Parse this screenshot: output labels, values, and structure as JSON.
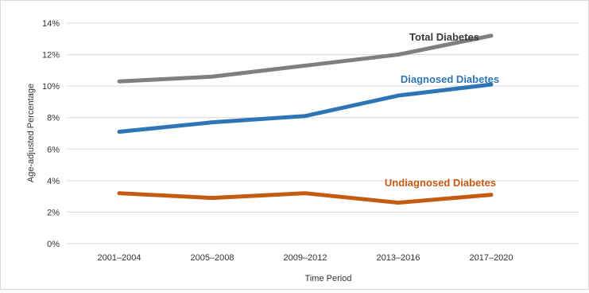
{
  "chart_data": {
    "type": "line",
    "categories": [
      "2001–2004",
      "2005–2008",
      "2009–2012",
      "2013–2016",
      "2017–2020"
    ],
    "series": [
      {
        "name": "Total Diabetes",
        "values": [
          10.3,
          10.6,
          11.3,
          12.0,
          13.2
        ],
        "color": "#7f7f7f"
      },
      {
        "name": "Diagnosed Diabetes",
        "values": [
          7.1,
          7.7,
          8.1,
          9.4,
          10.1
        ],
        "color": "#2e75b6"
      },
      {
        "name": "Undiagnosed Diabetes",
        "values": [
          3.2,
          2.9,
          3.2,
          2.6,
          3.1
        ],
        "color": "#c55a11"
      }
    ],
    "title": "",
    "xlabel": "Time Period",
    "ylabel": "Age-adjusted Percentage",
    "ylim": [
      0,
      14
    ],
    "yticks": [
      "0%",
      "2%",
      "4%",
      "6%",
      "8%",
      "10%",
      "12%",
      "14%"
    ],
    "grid": true,
    "legend": "inline labels"
  }
}
